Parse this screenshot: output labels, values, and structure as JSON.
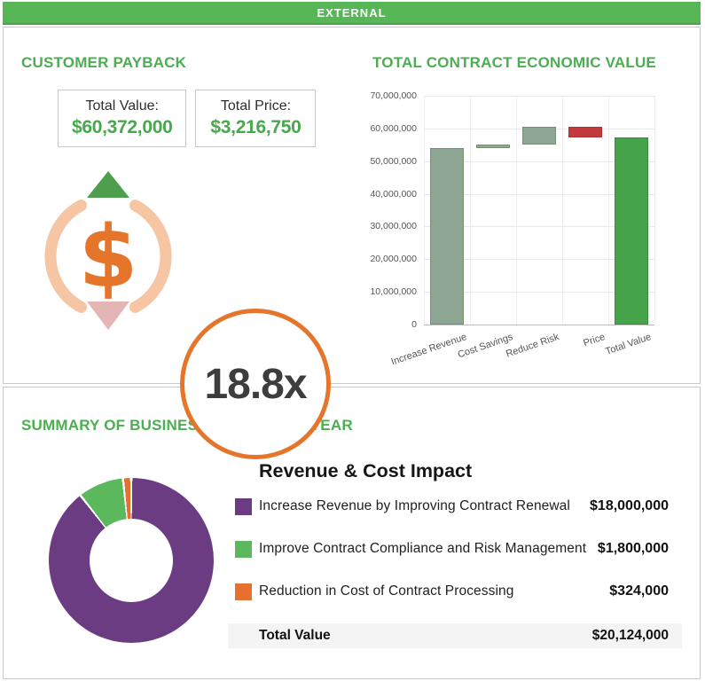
{
  "header": {
    "title": "EXTERNAL"
  },
  "colors": {
    "brand_green": "#57b757",
    "title_green": "#4bae50",
    "money_green": "#47a84c",
    "orange": "#e6752c",
    "ring_peach": "#f6c5a4",
    "arrow_up_green": "#4d9f4d",
    "arrow_down_pink": "#e3b5b4"
  },
  "customer_payback": {
    "title": "CUSTOMER PAYBACK",
    "stats": [
      {
        "label": "Total Value:",
        "value": "$60,372,000"
      },
      {
        "label": "Total Price:",
        "value": "$3,216,750"
      }
    ],
    "dollar_symbol": "$",
    "multiplier": "18.8x"
  },
  "economic_value": {
    "title": "TOTAL CONTRACT ECONOMIC VALUE"
  },
  "summary": {
    "title": "SUMMARY OF BUSINESS IMPACT PER YEAR",
    "legend_title": "Revenue & Cost Impact",
    "rows": [
      {
        "label": "Increase Revenue by Improving Contract Renewal",
        "value": "$18,000,000",
        "color": "#6b3c82"
      },
      {
        "label": "Improve Contract Compliance and Risk Management",
        "value": "$1,800,000",
        "color": "#5cb85c"
      },
      {
        "label": "Reduction in Cost of Contract Processing",
        "value": "$324,000",
        "color": "#e8702e"
      }
    ],
    "total": {
      "label": "Total Value",
      "value": "$20,124,000"
    }
  },
  "chart_data": [
    {
      "type": "bar",
      "subtype": "waterfall",
      "title": "TOTAL CONTRACT ECONOMIC VALUE",
      "categories": [
        "Increase Revenue",
        "Cost Savings",
        "Reduce Risk",
        "Price",
        "Total Value"
      ],
      "segments": [
        {
          "label": "Increase Revenue",
          "from": 0,
          "to": 54000000,
          "color": "#8ea795",
          "border": "#74906f"
        },
        {
          "label": "Cost Savings",
          "from": 54000000,
          "to": 54972000,
          "color": "#8ea795",
          "border": "#74906f"
        },
        {
          "label": "Reduce Risk",
          "from": 54972000,
          "to": 60372000,
          "color": "#8ea795",
          "border": "#74906f"
        },
        {
          "label": "Price",
          "from": 60372000,
          "to": 57155250,
          "color": "#c23a3c",
          "border": "#a93336"
        },
        {
          "label": "Total Value",
          "from": 0,
          "to": 57155250,
          "color": "#45a44a",
          "border": "#398c3e"
        }
      ],
      "ylim": [
        0,
        70000000
      ],
      "yticks": [
        0,
        10000000,
        20000000,
        30000000,
        40000000,
        50000000,
        60000000,
        70000000
      ],
      "grid": true,
      "legend": "none"
    },
    {
      "type": "pie",
      "subtype": "donut",
      "title": "Revenue & Cost Impact",
      "labels": [
        "Increase Revenue by Improving Contract Renewal",
        "Improve Contract Compliance and Risk Management",
        "Reduction in Cost of Contract Processing"
      ],
      "values": [
        18000000,
        1800000,
        324000
      ],
      "colors": [
        "#6b3c82",
        "#5cb85c",
        "#e8702e"
      ],
      "total": 20124000,
      "start_angle": "top",
      "direction": "clockwise"
    }
  ]
}
